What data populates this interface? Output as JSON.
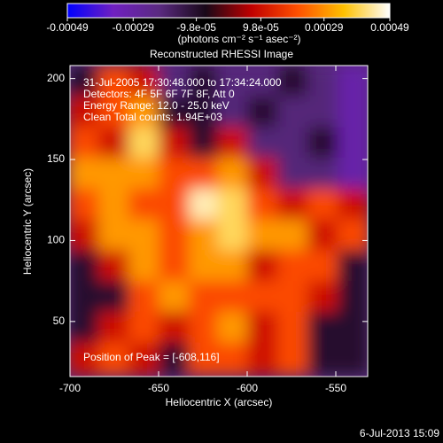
{
  "chart_data": {
    "type": "heatmap",
    "title": "Reconstructed RHESSI Image",
    "xlabel": "Heliocentric X (arcsec)",
    "ylabel": "Heliocentric Y (arcsec)",
    "xlim": [
      -700,
      -532
    ],
    "ylim": [
      16,
      208
    ],
    "xticks": [
      -700,
      -650,
      -600,
      -550
    ],
    "yticks": [
      50,
      100,
      150,
      200
    ],
    "x": [
      -692,
      -675,
      -658,
      -641,
      -624,
      -608,
      -591,
      -574,
      -557,
      -540
    ],
    "y": [
      198,
      179,
      160,
      141,
      122,
      103,
      84,
      65,
      46,
      27
    ],
    "values": [
      [
        -0.0001,
        0.0002,
        0.0001,
        -0.0002,
        -0.0001,
        -0.0002,
        -0.0002,
        -0.0001,
        -0.0002,
        -0.0003
      ],
      [
        0.0001,
        0.0002,
        0.0003,
        -0.0001,
        -0.0001,
        -0.0002,
        -0.0001,
        -0.0002,
        -0.0002,
        -0.0003
      ],
      [
        0.0002,
        0.0001,
        0.0004,
        0.0001,
        -0.0001,
        0.0001,
        -0.0002,
        -0.0002,
        -0.0001,
        -0.0003
      ],
      [
        0.0003,
        0.0003,
        0.0003,
        0.0002,
        0.0002,
        0.0003,
        0.0001,
        -0.0002,
        -0.0002,
        -0.0003
      ],
      [
        0.0002,
        0.0003,
        0.0002,
        0.0002,
        0.00045,
        0.0004,
        0.0002,
        0.0001,
        0.0002,
        0.0001
      ],
      [
        0.0001,
        0.0003,
        0.0003,
        0.0002,
        0.0003,
        0.0004,
        0.0003,
        0.0003,
        0.0001,
        0.0002
      ],
      [
        -0.0001,
        0.0001,
        0.0003,
        0.0002,
        0.0003,
        0.0003,
        0.0001,
        0.0002,
        0.0002,
        -0.0001
      ],
      [
        -0.0001,
        -0.0001,
        0.0002,
        0.0003,
        0.0002,
        0.0002,
        0.0002,
        0.0002,
        0.0001,
        -0.0001
      ],
      [
        -0.0001,
        0.0001,
        0.0002,
        0.0001,
        0.0002,
        0.0003,
        0.0001,
        0.0002,
        -0.0001,
        -0.0001
      ],
      [
        0.0001,
        0.0002,
        0.0001,
        -0.0001,
        0.0002,
        0.0002,
        0.0001,
        0.0002,
        -0.0001,
        -0.0001
      ]
    ],
    "zlim": [
      -0.00049,
      0.00049
    ],
    "zticks": [
      -0.00049,
      -0.00029,
      {
        "value": -9.8e-05,
        "label": "-9.8e-05"
      },
      {
        "value": 9.8e-05,
        "label": "9.8e-05"
      },
      0.00029,
      0.00049
    ],
    "zlabel": "(photons cm⁻² s⁻¹ asec⁻²)",
    "colors": [
      "#0000ff",
      "#7020c0",
      "#5a2a80",
      "#180818",
      "#c00000",
      "#ff5000",
      "#ffc000",
      "#ffffff"
    ],
    "annotations": [
      "31-Jul-2005 17:30:48.000 to 17:34:24.000",
      "Detectors: 4F 5F 6F 7F 8F, Att 0",
      "Energy Range: 12.0 - 25.0 keV",
      "Clean     Total counts: 1.94E+03"
    ],
    "peak_label": "Position of Peak = [-608,116]",
    "timestamp": "6-Jul-2013 15:09"
  }
}
